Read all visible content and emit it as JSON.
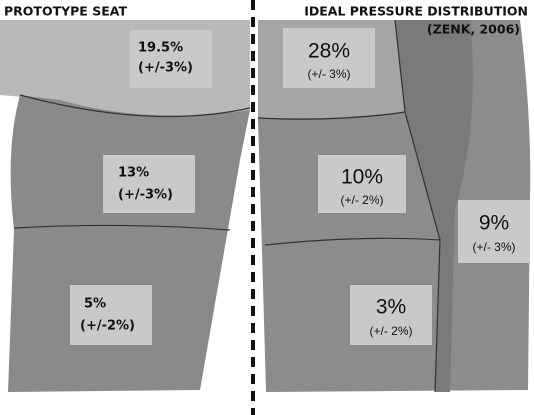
{
  "header": {
    "left_title": "PROTOTYPE SEAT",
    "right_title": "IDEAL PRESSURE DISTRIBUTION",
    "citation": "(ZENK, 2006)"
  },
  "prototype_seat": [
    {
      "value": "19.5%",
      "tolerance": "(+/-3%)"
    },
    {
      "value": "13%",
      "tolerance": "(+/-3%)"
    },
    {
      "value": "5%",
      "tolerance": "(+/-2%)"
    }
  ],
  "ideal_distribution": [
    {
      "value": "28%",
      "tolerance": "(+/- 3%)"
    },
    {
      "value": "10%",
      "tolerance": "(+/- 2%)"
    },
    {
      "value": "9%",
      "tolerance": "(+/- 3%)"
    },
    {
      "value": "3%",
      "tolerance": "(+/- 2%)"
    }
  ]
}
